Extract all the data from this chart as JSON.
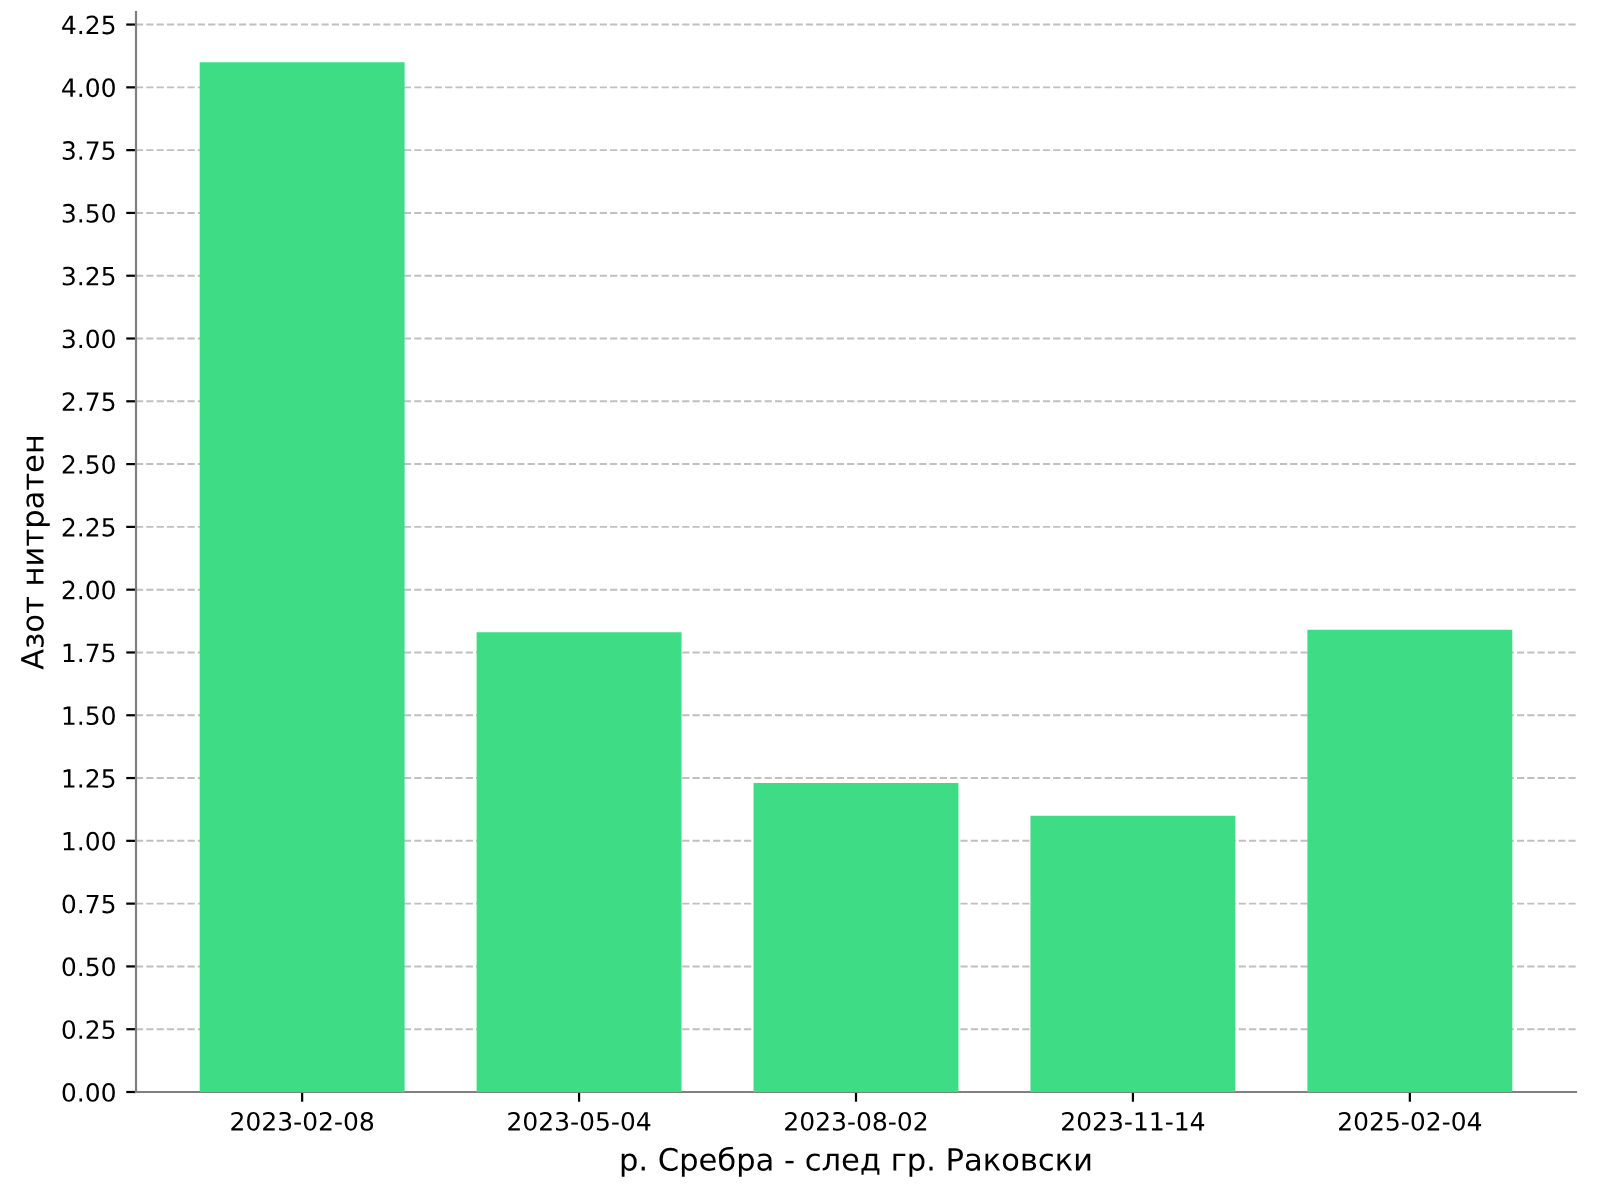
{
  "chart_data": {
    "type": "bar",
    "xlabel": "р. Сребра - след гр. Раковски",
    "ylabel": "Азот нитратен",
    "categories": [
      "2023-02-08",
      "2023-05-04",
      "2023-08-02",
      "2023-11-14",
      "2025-02-04"
    ],
    "values": [
      4.1,
      1.83,
      1.23,
      1.1,
      1.84
    ],
    "color": "#3fdc86",
    "ylim": [
      0,
      4.3
    ],
    "yticks": [
      {
        "value": 0,
        "label": "0.00"
      },
      {
        "value": 0.25,
        "label": "0.25"
      },
      {
        "value": 0.5,
        "label": "0.50"
      },
      {
        "value": 0.75,
        "label": "0.75"
      },
      {
        "value": 1,
        "label": "1.00"
      },
      {
        "value": 1.25,
        "label": "1.25"
      },
      {
        "value": 1.5,
        "label": "1.50"
      },
      {
        "value": 1.75,
        "label": "1.75"
      },
      {
        "value": 2,
        "label": "2.00"
      },
      {
        "value": 2.25,
        "label": "2.25"
      },
      {
        "value": 2.5,
        "label": "2.50"
      },
      {
        "value": 2.75,
        "label": "2.75"
      },
      {
        "value": 3,
        "label": "3.00"
      },
      {
        "value": 3.25,
        "label": "3.25"
      },
      {
        "value": 3.5,
        "label": "3.50"
      },
      {
        "value": 3.75,
        "label": "3.75"
      },
      {
        "value": 4,
        "label": "4.00"
      },
      {
        "value": 4.25,
        "label": "4.25"
      }
    ],
    "grid": "y"
  }
}
